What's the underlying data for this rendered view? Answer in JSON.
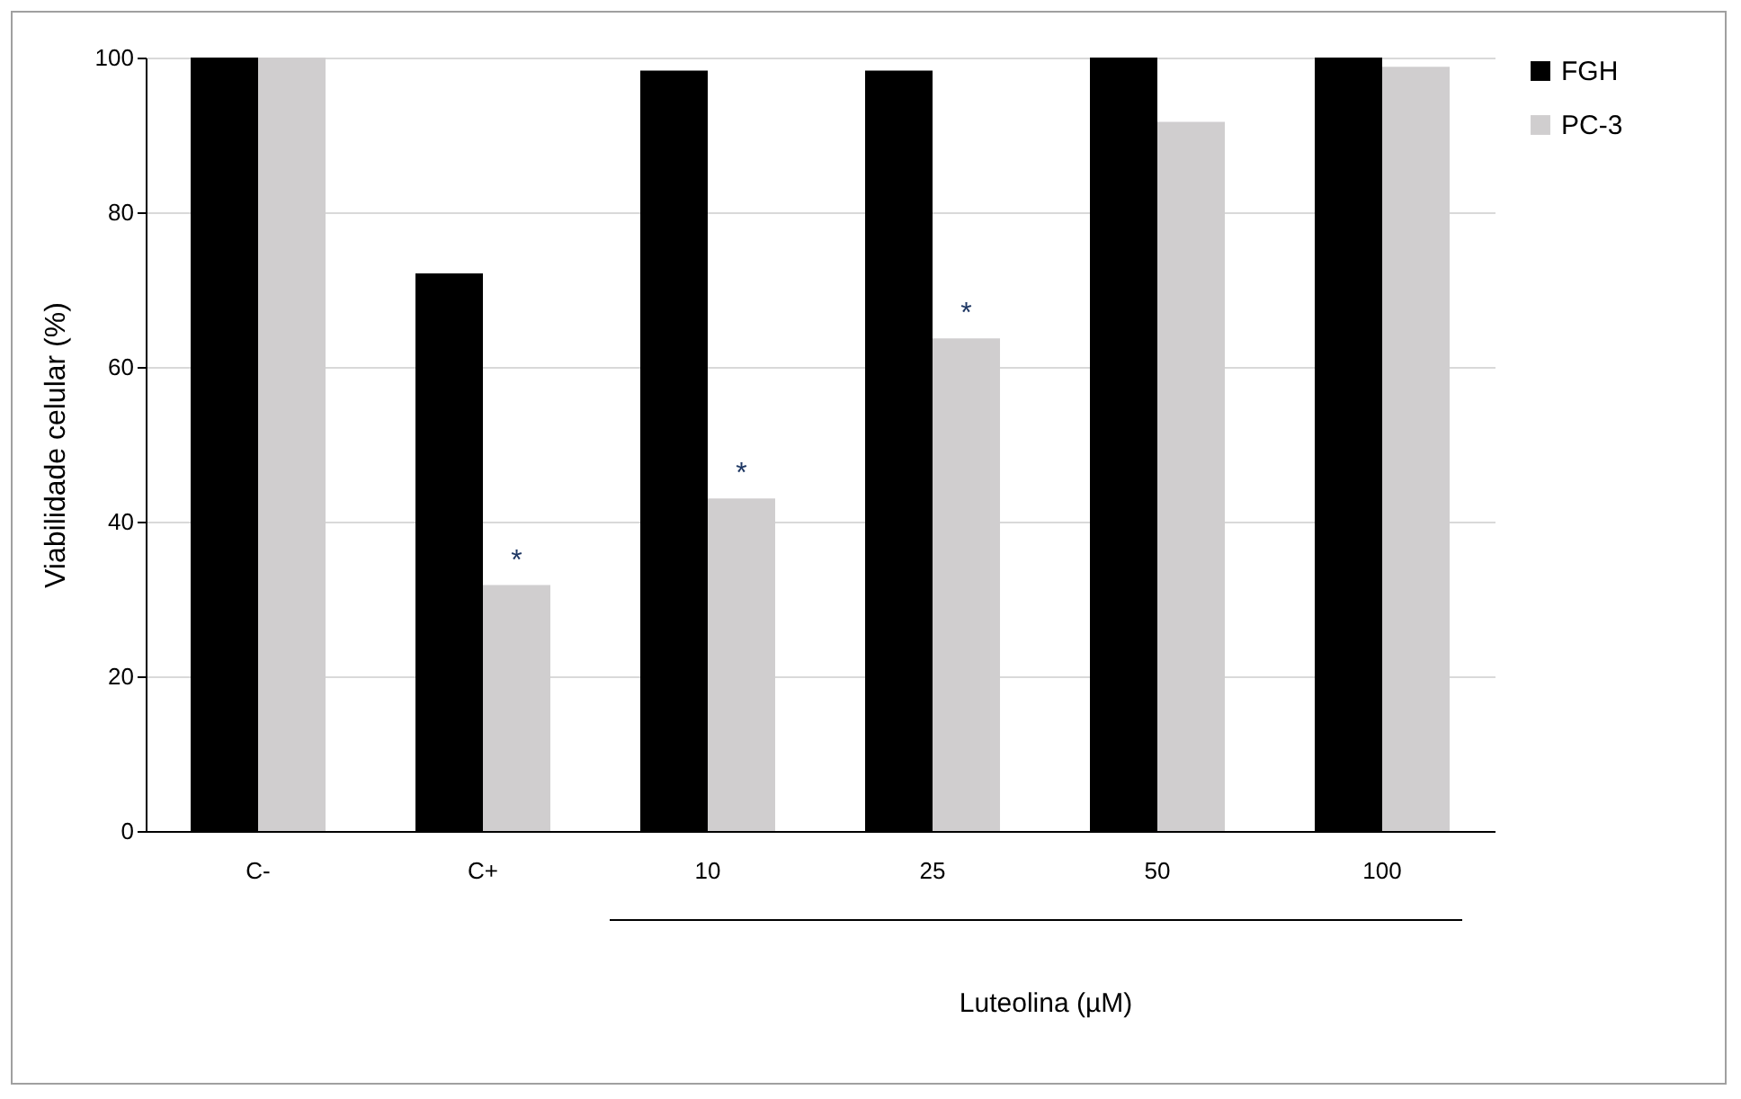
{
  "chart_data": {
    "type": "bar",
    "xlabel": "Luteolina (µM)",
    "ylabel": "Viabilidade celular (%)",
    "categories": [
      "C-",
      "C+",
      "10",
      "25",
      "50",
      "100"
    ],
    "series": [
      {
        "name": "FGH",
        "color": "#000000",
        "values": [
          100,
          72.1,
          98.3,
          98.3,
          100,
          100
        ]
      },
      {
        "name": "PC-3",
        "color": "#d0cecf",
        "values": [
          100,
          31.8,
          43.0,
          63.7,
          91.7,
          98.8
        ]
      }
    ],
    "ylim": [
      0,
      100
    ],
    "yticks": [
      0,
      20,
      40,
      60,
      80,
      100
    ],
    "grid": "y",
    "legend": "right",
    "annotations": [
      {
        "text": "*",
        "x": "C+",
        "y": 31.8
      },
      {
        "text": "*",
        "x": "10",
        "y": 43.0
      },
      {
        "text": "*",
        "x": "25",
        "y": 63.7
      }
    ]
  }
}
